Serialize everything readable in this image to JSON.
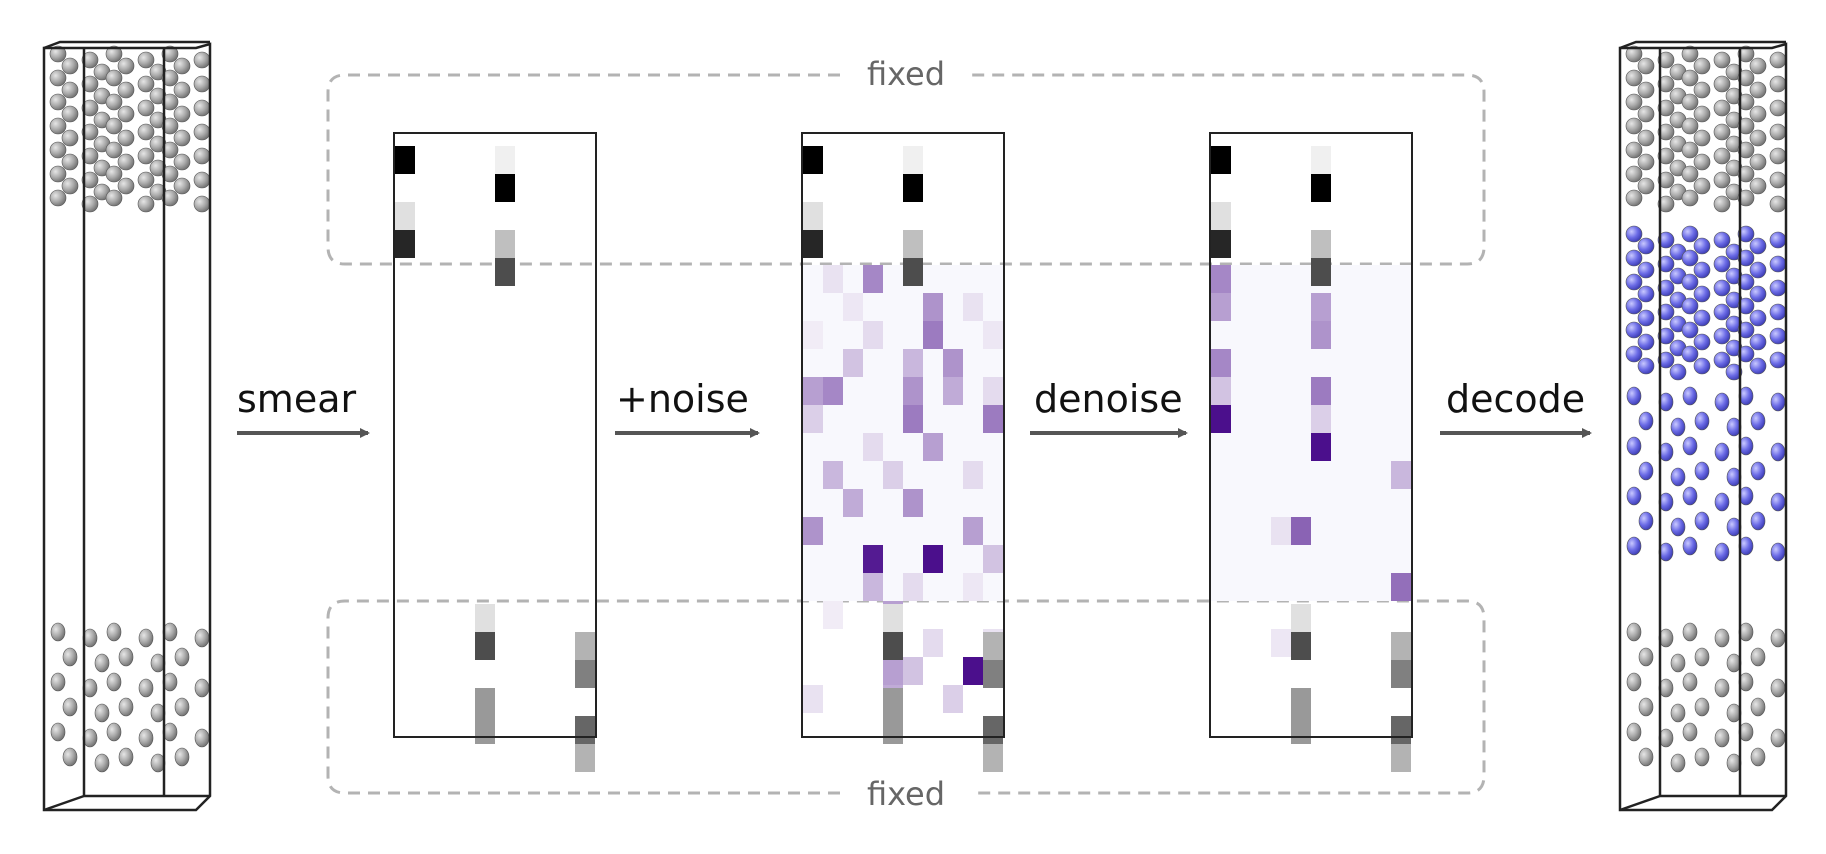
{
  "labels": {
    "fixed_top": "fixed",
    "fixed_bottom": "fixed",
    "step_smear": "smear",
    "step_noise": "+noise",
    "step_denoise": "denoise",
    "step_decode": "decode"
  },
  "colors": {
    "fixed_atom": "#9e9e9e",
    "generated_atom": "#6b6be6",
    "fixed_cell": "#000000",
    "noise_cell": "#4b0f8c",
    "arrow": "#555555",
    "dashed_box": "#b3b3b3"
  },
  "panels": {
    "fixed_top_cells": [
      [
        0,
        0,
        1.0
      ],
      [
        5,
        0,
        0.06
      ],
      [
        5,
        1,
        1.0
      ],
      [
        0,
        2,
        0.12
      ],
      [
        0,
        3,
        0.85
      ],
      [
        5,
        3,
        0.25
      ],
      [
        5,
        4,
        0.7
      ]
    ],
    "fixed_bottom_cells": [
      [
        4,
        0,
        0.12
      ],
      [
        4,
        1,
        0.7
      ],
      [
        9,
        1,
        0.3
      ],
      [
        9,
        2,
        0.5
      ],
      [
        4,
        3,
        0.4
      ],
      [
        4,
        4,
        0.4
      ],
      [
        9,
        4,
        0.6
      ],
      [
        9,
        5,
        0.3
      ]
    ],
    "noise_cells": [
      [
        3,
        0,
        0.5
      ],
      [
        1,
        0,
        0.12
      ],
      [
        6,
        1,
        0.45
      ],
      [
        8,
        1,
        0.12
      ],
      [
        2,
        1,
        0.1
      ],
      [
        6,
        2,
        0.55
      ],
      [
        3,
        2,
        0.15
      ],
      [
        0,
        2,
        0.08
      ],
      [
        9,
        2,
        0.1
      ],
      [
        2,
        3,
        0.25
      ],
      [
        5,
        3,
        0.3
      ],
      [
        7,
        3,
        0.45
      ],
      [
        1,
        4,
        0.5
      ],
      [
        5,
        4,
        0.45
      ],
      [
        7,
        4,
        0.35
      ],
      [
        0,
        4,
        0.4
      ],
      [
        9,
        4,
        0.15
      ],
      [
        5,
        5,
        0.55
      ],
      [
        0,
        5,
        0.2
      ],
      [
        9,
        5,
        0.55
      ],
      [
        6,
        6,
        0.4
      ],
      [
        3,
        6,
        0.15
      ],
      [
        1,
        7,
        0.3
      ],
      [
        4,
        7,
        0.2
      ],
      [
        8,
        7,
        0.15
      ],
      [
        2,
        8,
        0.35
      ],
      [
        5,
        8,
        0.45
      ],
      [
        0,
        9,
        0.45
      ],
      [
        8,
        9,
        0.4
      ],
      [
        3,
        10,
        0.95
      ],
      [
        6,
        10,
        1.0
      ],
      [
        9,
        10,
        0.25
      ],
      [
        3,
        11,
        0.3
      ],
      [
        5,
        11,
        0.15
      ],
      [
        8,
        11,
        0.1
      ],
      [
        4,
        12,
        0.4
      ],
      [
        1,
        12,
        0.08
      ],
      [
        6,
        13,
        0.15
      ],
      [
        9,
        13,
        0.12
      ],
      [
        8,
        14,
        1.0
      ],
      [
        4,
        14,
        0.4
      ],
      [
        5,
        14,
        0.25
      ],
      [
        0,
        15,
        0.12
      ],
      [
        4,
        15,
        0.35
      ],
      [
        7,
        15,
        0.2
      ]
    ],
    "denoised_cells": [
      [
        0,
        0,
        0.5
      ],
      [
        0,
        1,
        0.4
      ],
      [
        5,
        1,
        0.4
      ],
      [
        5,
        2,
        0.45
      ],
      [
        0,
        3,
        0.5
      ],
      [
        0,
        4,
        0.25
      ],
      [
        5,
        4,
        0.55
      ],
      [
        0,
        5,
        1.0
      ],
      [
        5,
        5,
        0.2
      ],
      [
        5,
        6,
        1.0
      ],
      [
        9,
        7,
        0.3
      ],
      [
        4,
        9,
        0.65
      ],
      [
        3,
        9,
        0.12
      ],
      [
        9,
        11,
        0.6
      ],
      [
        4,
        13,
        0.7
      ],
      [
        3,
        13,
        0.1
      ],
      [
        9,
        14,
        0.5
      ]
    ]
  }
}
